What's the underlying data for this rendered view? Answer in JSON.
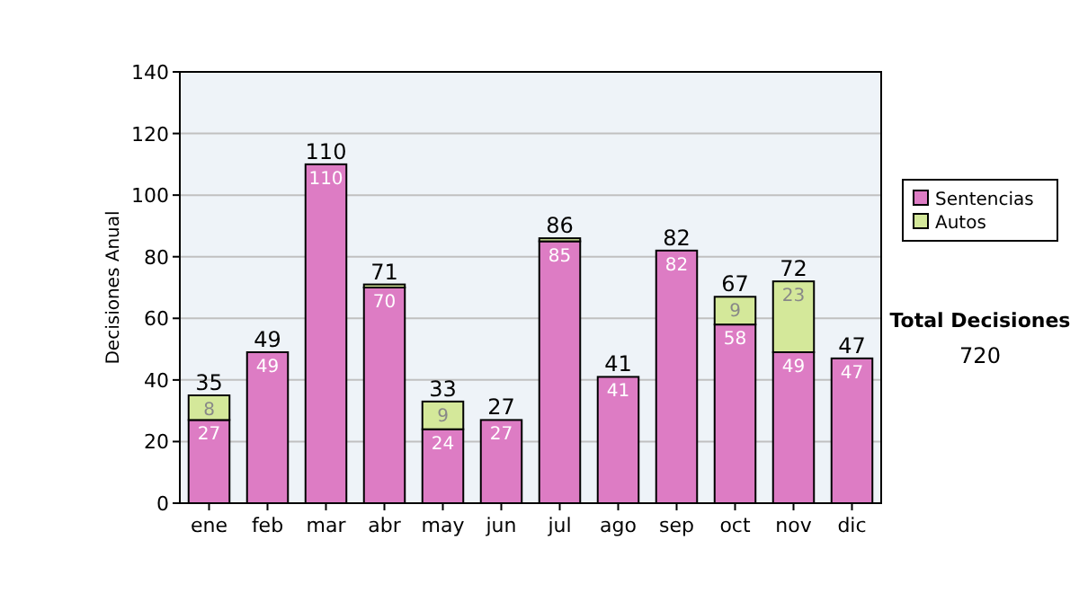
{
  "chart_data": {
    "type": "bar",
    "stacked": true,
    "ylabel": "Decisiones Anual",
    "categories": [
      "ene",
      "feb",
      "mar",
      "abr",
      "may",
      "jun",
      "jul",
      "ago",
      "sep",
      "oct",
      "nov",
      "dic"
    ],
    "series": [
      {
        "name": "Sentencias",
        "color": "#dd7cc4",
        "values": [
          27,
          49,
          110,
          70,
          24,
          27,
          85,
          41,
          82,
          58,
          49,
          47
        ],
        "value_labels": [
          "27",
          "49",
          "110",
          "70",
          "24",
          "27",
          "85",
          "41",
          "82",
          "58",
          "49",
          "47"
        ]
      },
      {
        "name": "Autos",
        "color": "#d4e89a",
        "values": [
          8,
          0,
          0,
          1,
          9,
          0,
          1,
          0,
          0,
          9,
          23,
          0
        ],
        "value_labels": [
          "8",
          null,
          null,
          null,
          "9",
          null,
          null,
          null,
          null,
          "9",
          "23",
          null
        ]
      }
    ],
    "totals": [
      "35",
      "49",
      "110",
      "71",
      "33",
      "27",
      "86",
      "41",
      "82",
      "67",
      "72",
      "47"
    ],
    "ylim": [
      0,
      140
    ],
    "yticks": [
      0,
      20,
      40,
      60,
      80,
      100,
      120,
      140
    ],
    "grid": "y",
    "legend": "right",
    "annotations": [
      "Total Decisiones",
      "720"
    ]
  }
}
